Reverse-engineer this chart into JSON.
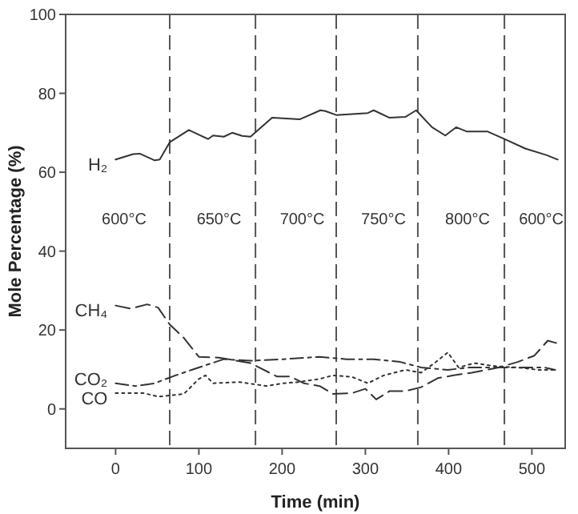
{
  "chart_data": {
    "type": "line",
    "xlabel": "Time (min)",
    "ylabel": "Mole Percentage (%)",
    "xlim": [
      -60,
      540
    ],
    "ylim": [
      -10,
      100
    ],
    "xticks": [
      0,
      100,
      200,
      300,
      400,
      500
    ],
    "yticks": [
      0,
      20,
      40,
      60,
      80,
      100
    ],
    "grid": false,
    "marker": "none",
    "series": [
      {
        "name": "H₂",
        "color": "#333333",
        "line_style": "solid",
        "x": [
          0,
          21,
          29,
          47,
          53,
          65,
          88,
          111,
          117,
          130,
          140,
          152,
          162,
          188,
          221,
          246,
          252,
          265,
          303,
          310,
          329,
          348,
          361,
          380,
          396,
          409,
          422,
          447,
          467,
          492,
          518,
          531
        ],
        "values": [
          63.2,
          64.6,
          64.7,
          63,
          63.2,
          67.6,
          70.7,
          68.4,
          69.3,
          69,
          70,
          69.2,
          69,
          73.8,
          73.4,
          75.7,
          75.5,
          74.5,
          75,
          75.7,
          73.8,
          74,
          75.7,
          71.4,
          69.3,
          71.4,
          70.3,
          70.3,
          68.4,
          66,
          64.3,
          63.2
        ]
      },
      {
        "name": "CH₄",
        "color": "#333333",
        "line_style": "dashed",
        "x": [
          0,
          18,
          38,
          51,
          65,
          82,
          100,
          124,
          162,
          194,
          210,
          226,
          245,
          261,
          284,
          300,
          313,
          329,
          348,
          367,
          387,
          406,
          428,
          460,
          483,
          503,
          519,
          531
        ],
        "values": [
          26.2,
          25.4,
          26.5,
          25.7,
          21.4,
          18,
          13.2,
          13,
          11.6,
          8.2,
          8.2,
          6.5,
          5.8,
          3.8,
          4,
          5.1,
          2.4,
          4.5,
          4.5,
          5.5,
          7.8,
          8.5,
          9.2,
          10.5,
          11.9,
          13.5,
          17.3,
          16.6
        ]
      },
      {
        "name": "CO₂",
        "color": "#333333",
        "line_style": "dashdot",
        "x": [
          0,
          24,
          47,
          72,
          100,
          130,
          162,
          201,
          245,
          277,
          310,
          342,
          367,
          399,
          425,
          457,
          489,
          515,
          528
        ],
        "values": [
          6.5,
          5.8,
          6.5,
          8.5,
          10.5,
          12.6,
          12.2,
          12.6,
          13.2,
          12.6,
          12.6,
          11.9,
          10.5,
          9.9,
          10.5,
          10.5,
          10.5,
          10.5,
          9.9
        ]
      },
      {
        "name": "CO",
        "color": "#333333",
        "line_style": "dotted",
        "x": [
          0,
          34,
          51,
          65,
          82,
          100,
          108,
          117,
          149,
          181,
          201,
          220,
          245,
          261,
          284,
          303,
          322,
          348,
          367,
          383,
          399,
          412,
          431,
          457,
          483,
          508,
          528
        ],
        "values": [
          4,
          4,
          3.1,
          3.4,
          3.8,
          7.6,
          8.5,
          6.5,
          6.8,
          5.8,
          6.5,
          6.8,
          7.6,
          8.5,
          8.1,
          6.5,
          8.5,
          9.9,
          9.2,
          11.6,
          14.3,
          10.5,
          11.6,
          10.8,
          10.5,
          9.9,
          9.9
        ]
      }
    ],
    "ref_lines": [
      {
        "axis": "x",
        "value": 65,
        "color": "#555555",
        "line_style": "dashed"
      },
      {
        "axis": "x",
        "value": 168,
        "color": "#555555",
        "line_style": "dashed"
      },
      {
        "axis": "x",
        "value": 265,
        "color": "#555555",
        "line_style": "dashed"
      },
      {
        "axis": "x",
        "value": 363,
        "color": "#555555",
        "line_style": "dashed"
      },
      {
        "axis": "x",
        "value": 467,
        "color": "#555555",
        "line_style": "dashed"
      }
    ],
    "annotations": [
      "600°C",
      "650°C",
      "700°C",
      "750°C",
      "800°C",
      "600°C"
    ]
  }
}
